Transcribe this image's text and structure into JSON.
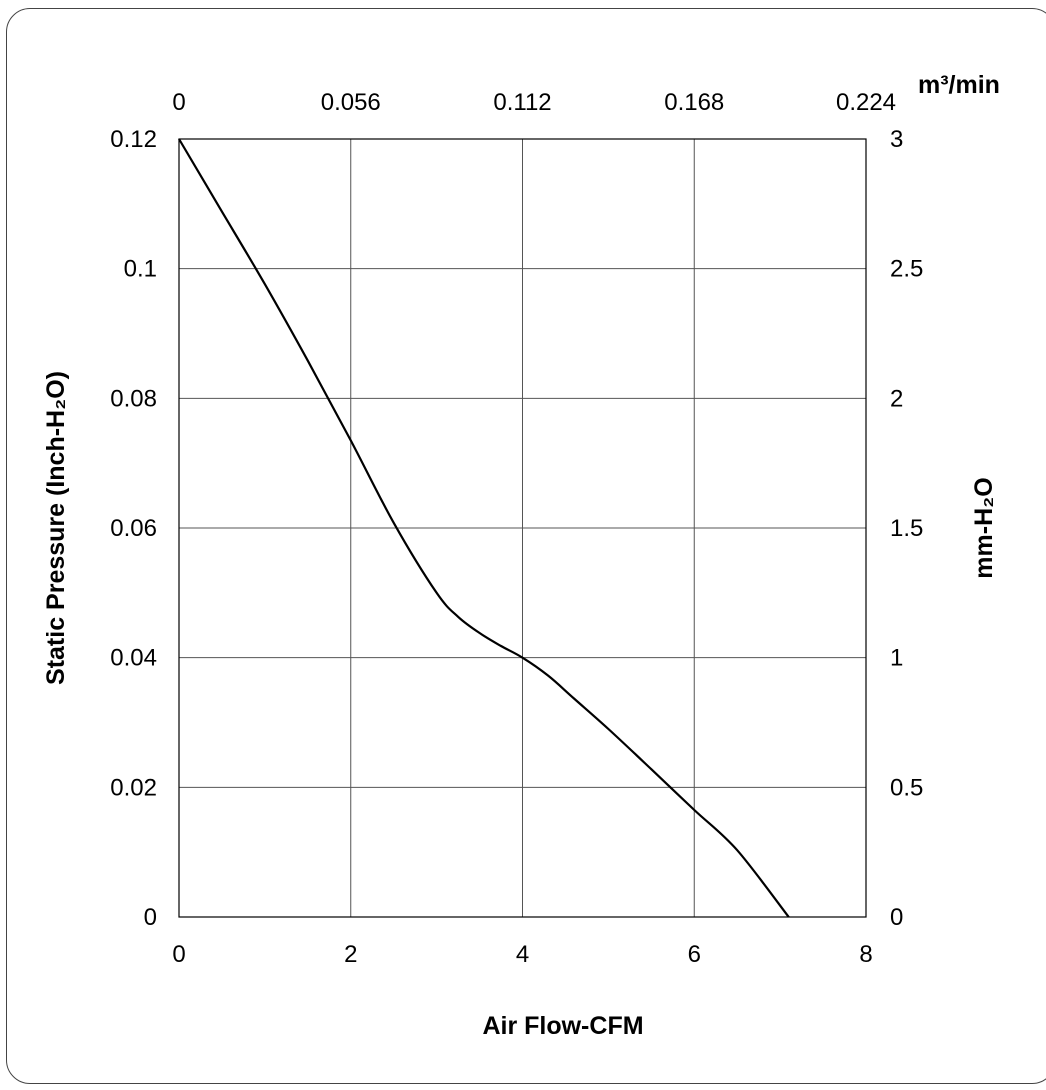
{
  "chart_data": {
    "type": "line",
    "title": "",
    "xlabel": "Air Flow-CFM",
    "ylabel": "Static Pressure (Inch-H₂O)",
    "ylabel_right": "mm-H₂O",
    "xlabel_top": "m³/min",
    "xlim": [
      0,
      8
    ],
    "ylim": [
      0,
      0.12
    ],
    "xlim_top": [
      0,
      0.224
    ],
    "ylim_right": [
      0,
      3
    ],
    "grid": true,
    "x_ticks": [
      "0",
      "2",
      "4",
      "6",
      "8"
    ],
    "y_ticks": [
      "0",
      "0.02",
      "0.04",
      "0.06",
      "0.08",
      "0.1",
      "0.12"
    ],
    "x_top_ticks": [
      "0",
      "0.056",
      "0.112",
      "0.168",
      "0.224"
    ],
    "y_right_ticks": [
      "0",
      "0.5",
      "1",
      "1.5",
      "2",
      "2.5",
      "3"
    ],
    "series": [
      {
        "color": "#000000",
        "x": [
          0,
          0.5,
          1.0,
          1.5,
          2.0,
          2.5,
          3.0,
          3.25,
          3.5,
          3.75,
          4.0,
          4.3,
          4.6,
          5.0,
          5.5,
          6.0,
          6.5,
          7.1
        ],
        "y": [
          0.12,
          0.1088,
          0.0976,
          0.0858,
          0.0735,
          0.0608,
          0.05,
          0.0463,
          0.0438,
          0.0418,
          0.04,
          0.0372,
          0.0337,
          0.029,
          0.0228,
          0.0165,
          0.0103,
          0.0
        ]
      }
    ]
  }
}
